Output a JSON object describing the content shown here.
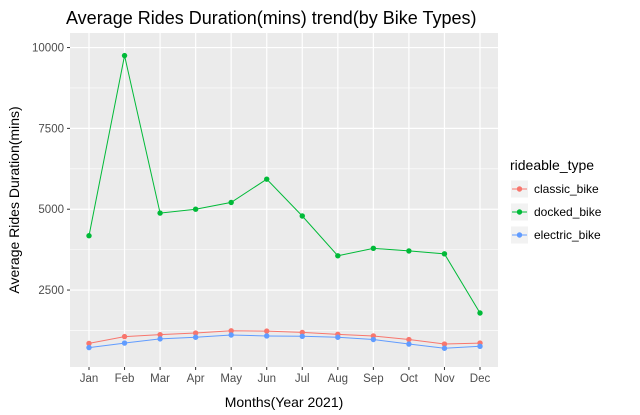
{
  "chart_data": {
    "type": "line",
    "title": "Average Rides Duration(mins) trend(by Bike Types)",
    "xlabel": "Months(Year 2021)",
    "ylabel": "Average Rides Duration(mins)",
    "categories": [
      "Jan",
      "Feb",
      "Mar",
      "Apr",
      "May",
      "Jun",
      "Jul",
      "Aug",
      "Sep",
      "Oct",
      "Nov",
      "Dec"
    ],
    "yticks": [
      2500,
      5000,
      7500,
      10000
    ],
    "ylim": [
      120,
      10450
    ],
    "grid": true,
    "legend": {
      "title": "rideable_type",
      "position": "right"
    },
    "series": [
      {
        "name": "classic_bike",
        "color": "#F8766D",
        "values": [
          850,
          1060,
          1120,
          1170,
          1240,
          1230,
          1190,
          1130,
          1080,
          970,
          830,
          860
        ]
      },
      {
        "name": "docked_bike",
        "color": "#00BA38",
        "values": [
          4180,
          9750,
          4880,
          5000,
          5210,
          5930,
          4790,
          3560,
          3790,
          3710,
          3620,
          1790
        ]
      },
      {
        "name": "electric_bike",
        "color": "#619CFF",
        "values": [
          720,
          860,
          990,
          1040,
          1110,
          1080,
          1070,
          1040,
          970,
          830,
          700,
          760
        ]
      }
    ]
  }
}
